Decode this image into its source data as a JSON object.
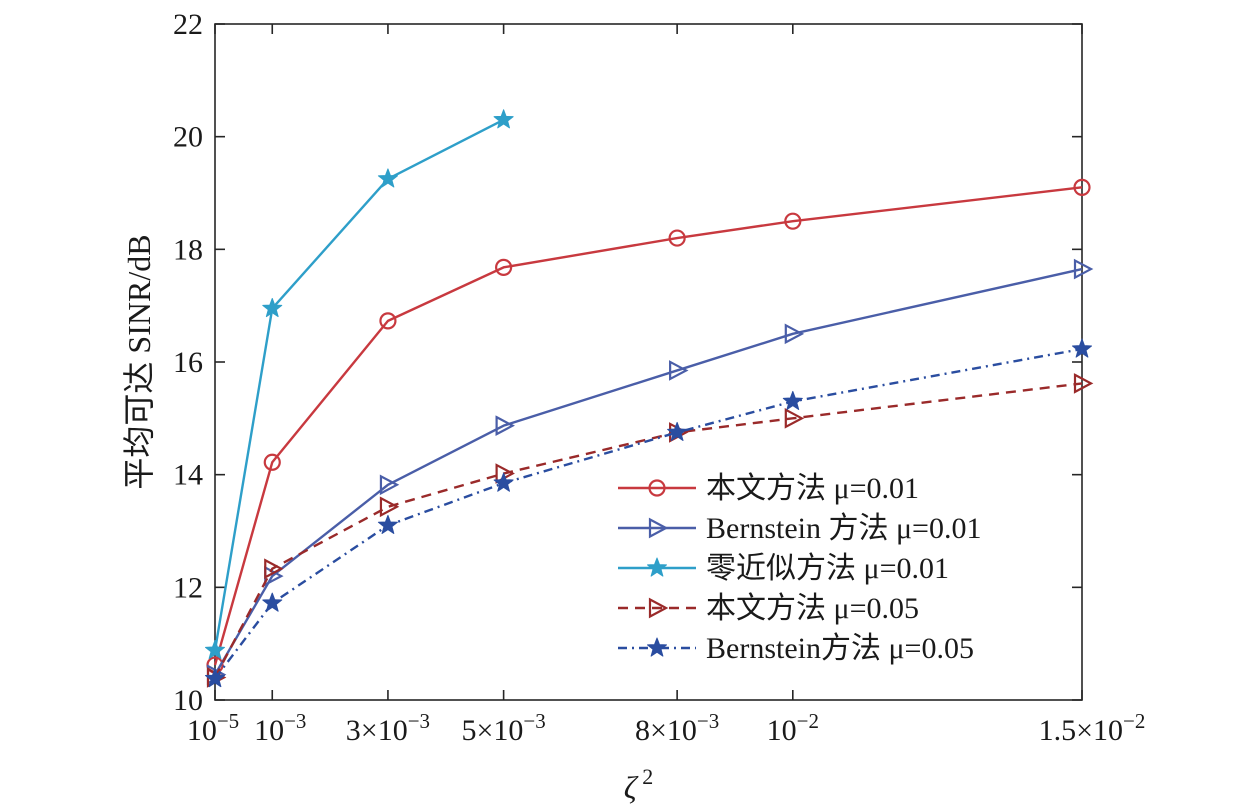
{
  "chart_data": {
    "type": "line",
    "xlabel": "ζ",
    "xlabel_sup": "2",
    "ylabel": "平均可达 SINR/dB",
    "ylim": [
      10,
      22
    ],
    "yticks": [
      10,
      12,
      14,
      16,
      18,
      20,
      22
    ],
    "xlim": [
      1e-05,
      0.015
    ],
    "xticks": [
      {
        "value": 1e-05,
        "base": "10",
        "exp": "−5"
      },
      {
        "value": 0.001,
        "base": "10",
        "exp": "−3"
      },
      {
        "value": 0.003,
        "base": "3×10",
        "exp": "−3"
      },
      {
        "value": 0.005,
        "base": "5×10",
        "exp": "−3"
      },
      {
        "value": 0.008,
        "base": "8×10",
        "exp": "−3"
      },
      {
        "value": 0.01,
        "base": "10",
        "exp": "−2"
      },
      {
        "value": 0.015,
        "base": "1.5×10",
        "exp": "−2"
      }
    ],
    "grid": false,
    "legend_position": "bottom-right",
    "series": [
      {
        "name": "本文方法 μ=0.01",
        "color": "#c8393f",
        "marker": "circle",
        "dash": "solid",
        "x": [
          1e-05,
          0.001,
          0.003,
          0.005,
          0.008,
          0.01,
          0.015
        ],
        "y": [
          10.62,
          14.22,
          16.73,
          17.68,
          18.2,
          18.5,
          19.1
        ]
      },
      {
        "name": "Bernstein 方法 μ=0.01",
        "color": "#4a5ea8",
        "marker": "triangle-right",
        "dash": "solid",
        "x": [
          1e-05,
          0.001,
          0.003,
          0.005,
          0.008,
          0.01,
          0.015
        ],
        "y": [
          10.45,
          12.2,
          13.82,
          14.87,
          15.85,
          16.5,
          17.65
        ]
      },
      {
        "name": "零近似方法 μ=0.01",
        "color": "#2e9fc9",
        "marker": "star",
        "dash": "solid",
        "x": [
          1e-05,
          0.001,
          0.003,
          0.005
        ],
        "y": [
          10.88,
          16.95,
          19.25,
          20.3
        ]
      },
      {
        "name": "本文方法 μ=0.05",
        "color": "#9a2a2a",
        "marker": "triangle-right",
        "dash": "dashed",
        "x": [
          1e-05,
          0.001,
          0.003,
          0.005,
          0.008,
          0.01,
          0.015
        ],
        "y": [
          10.4,
          12.33,
          13.43,
          14.02,
          14.75,
          15.0,
          15.62
        ]
      },
      {
        "name": "Bernstein方法 μ=0.05",
        "color": "#2a4da0",
        "marker": "star",
        "dash": "dashdot",
        "x": [
          1e-05,
          0.001,
          0.003,
          0.005,
          0.008,
          0.01,
          0.015
        ],
        "y": [
          10.38,
          11.72,
          13.1,
          13.85,
          14.75,
          15.3,
          16.23
        ]
      }
    ]
  }
}
